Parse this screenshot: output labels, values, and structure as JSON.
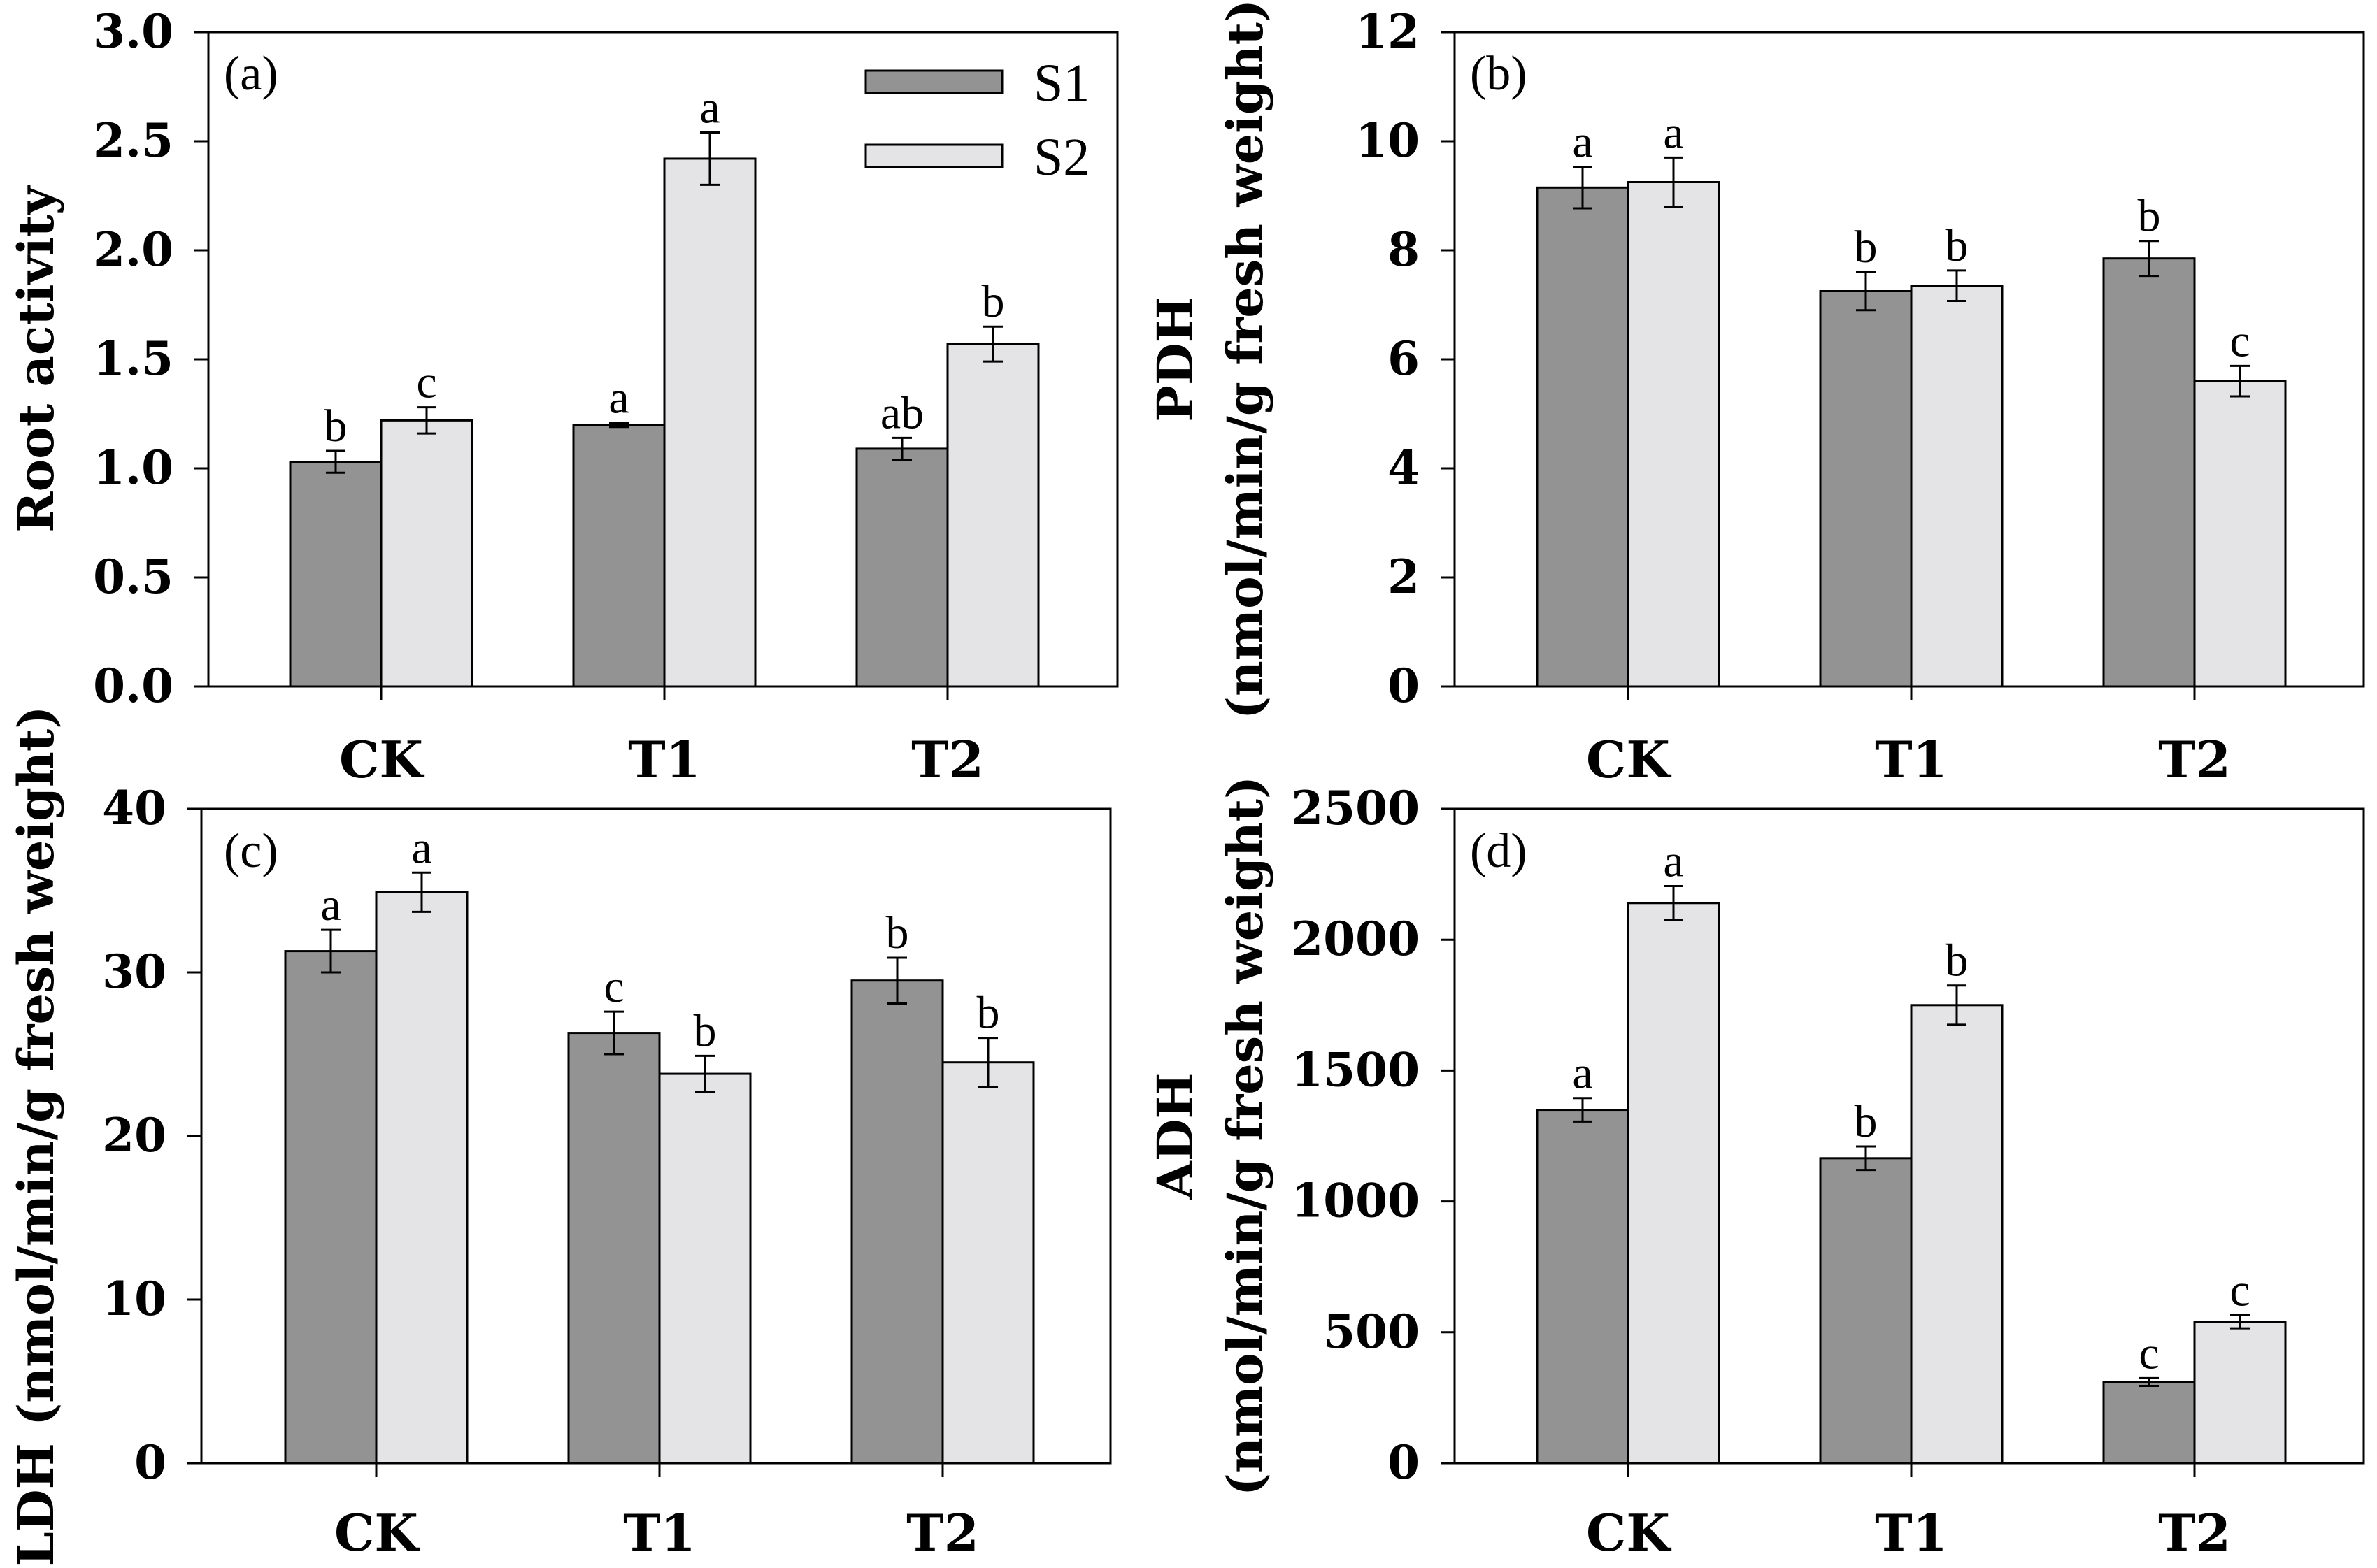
{
  "colors": {
    "S1": "#939393",
    "S2": "#e4e4e6",
    "axis": "#000000"
  },
  "legend": {
    "placement": "top-right of panel (a)",
    "S1": "S1",
    "S2": "S2"
  },
  "chart_data": [
    {
      "id": "a",
      "type": "bar",
      "panel_label": "(a)",
      "categories": [
        "CK",
        "T1",
        "T2"
      ],
      "ylabel": [
        "Root activity"
      ],
      "ylim": [
        0,
        3.0
      ],
      "yticks": [
        "0.0",
        "0.5",
        "1.0",
        "1.5",
        "2.0",
        "2.5",
        "3.0"
      ],
      "series": [
        {
          "name": "S1",
          "values": [
            1.03,
            1.2,
            1.09
          ],
          "errors": [
            0.05,
            0.01,
            0.05
          ],
          "labels": [
            "b",
            "a",
            "ab"
          ]
        },
        {
          "name": "S2",
          "values": [
            1.22,
            2.42,
            1.57
          ],
          "errors": [
            0.06,
            0.12,
            0.08
          ],
          "labels": [
            "c",
            "a",
            "b"
          ]
        }
      ]
    },
    {
      "id": "b",
      "type": "bar",
      "panel_label": "(b)",
      "categories": [
        "CK",
        "T1",
        "T2"
      ],
      "ylabel": [
        "PDH",
        "(nmol/min/g fresh weight)"
      ],
      "ylim": [
        0,
        12
      ],
      "yticks": [
        "0",
        "2",
        "4",
        "6",
        "8",
        "10",
        "12"
      ],
      "series": [
        {
          "name": "S1",
          "values": [
            9.15,
            7.25,
            7.85
          ],
          "errors": [
            0.38,
            0.35,
            0.32
          ],
          "labels": [
            "a",
            "b",
            "b"
          ]
        },
        {
          "name": "S2",
          "values": [
            9.25,
            7.35,
            5.6
          ],
          "errors": [
            0.45,
            0.28,
            0.28
          ],
          "labels": [
            "a",
            "b",
            "c"
          ]
        }
      ]
    },
    {
      "id": "c",
      "type": "bar",
      "panel_label": "(c)",
      "categories": [
        "CK",
        "T1",
        "T2"
      ],
      "ylabel": [
        "LDH (nmol/min/g fresh weight)"
      ],
      "ylim": [
        0,
        40
      ],
      "yticks": [
        "0",
        "10",
        "20",
        "30",
        "40"
      ],
      "series": [
        {
          "name": "S1",
          "values": [
            31.3,
            26.3,
            29.5
          ],
          "errors": [
            1.3,
            1.3,
            1.4
          ],
          "labels": [
            "a",
            "c",
            "b"
          ]
        },
        {
          "name": "S2",
          "values": [
            34.9,
            23.8,
            24.5
          ],
          "errors": [
            1.2,
            1.1,
            1.5
          ],
          "labels": [
            "a",
            "b",
            "b"
          ]
        }
      ]
    },
    {
      "id": "d",
      "type": "bar",
      "panel_label": "(d)",
      "categories": [
        "CK",
        "T1",
        "T2"
      ],
      "ylabel": [
        "ADH",
        "(nmol/min/g fresh weight)"
      ],
      "ylim": [
        0,
        2500
      ],
      "yticks": [
        "0",
        "500",
        "1000",
        "1500",
        "2000",
        "2500"
      ],
      "series": [
        {
          "name": "S1",
          "values": [
            1350,
            1165,
            310
          ],
          "errors": [
            45,
            45,
            15
          ],
          "labels": [
            "a",
            "b",
            "c"
          ]
        },
        {
          "name": "S2",
          "values": [
            2140,
            1750,
            540
          ],
          "errors": [
            65,
            75,
            25
          ],
          "labels": [
            "a",
            "b",
            "c"
          ]
        }
      ]
    }
  ]
}
